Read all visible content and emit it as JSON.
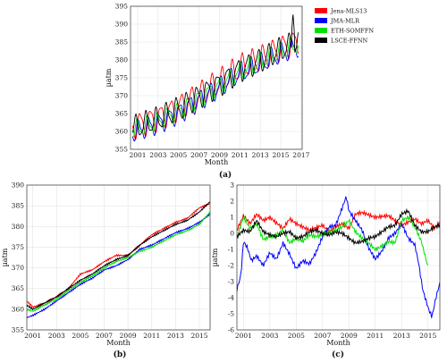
{
  "chart_data": [
    {
      "id": "a",
      "type": "line",
      "panel_label": "(a)",
      "xlabel": "Month",
      "ylabel": "µatm",
      "xlim": [
        2000.3,
        2017.1
      ],
      "ylim": [
        355,
        395
      ],
      "xticks": [
        "2001",
        "2003",
        "2005",
        "2007",
        "2009",
        "2011",
        "2013",
        "2015",
        "2017"
      ],
      "yticks": [
        355,
        360,
        365,
        370,
        375,
        380,
        385,
        390,
        395
      ],
      "grid": true,
      "legend": "outside-right",
      "series": [
        {
          "name": "Jena-MLS13",
          "color": "#ff0000"
        },
        {
          "name": "JMA-MLR",
          "color": "#0000ff"
        },
        {
          "name": "ETH-SOMFFN",
          "color": "#00e000"
        },
        {
          "name": "LSCE-FFNN",
          "color": "#000000"
        }
      ],
      "trend": {
        "x": [
          2000.5,
          2003,
          2005,
          2007,
          2009,
          2011,
          2013,
          2015,
          2016.7
        ],
        "y": [
          360.5,
          363,
          366,
          369.5,
          373,
          377,
          379.5,
          382.5,
          384.5
        ]
      },
      "seasonal_amplitude": [
        3.2,
        2.5,
        2.2,
        3.0
      ],
      "offsets": [
        1.5,
        -1.5,
        -0.5,
        0.6
      ],
      "peak_event": {
        "x": 2016.2,
        "y": 393
      }
    },
    {
      "id": "b",
      "type": "line",
      "panel_label": "(b)",
      "xlabel": "Month",
      "ylabel": "µatm",
      "xlim": [
        2000.5,
        2015.9
      ],
      "ylim": [
        355,
        390
      ],
      "xticks": [
        "2001",
        "2003",
        "2005",
        "2007",
        "2009",
        "2011",
        "2013",
        "2015"
      ],
      "yticks": [
        355,
        360,
        365,
        370,
        375,
        380,
        385,
        390
      ],
      "grid": true,
      "series": [
        {
          "name": "Jena-MLS13",
          "color": "#ff0000",
          "x": [
            2000.5,
            2001,
            2002,
            2003,
            2004,
            2005,
            2006,
            2007,
            2008,
            2009,
            2010,
            2011,
            2012,
            2013,
            2014,
            2015,
            2015.9
          ],
          "y": [
            362,
            360.5,
            361.5,
            363,
            365,
            368.5,
            369.5,
            371.5,
            373,
            373,
            375.5,
            378,
            379.5,
            381,
            382,
            384.5,
            385.5
          ]
        },
        {
          "name": "JMA-MLR",
          "color": "#0000ff",
          "x": [
            2000.5,
            2001,
            2002,
            2003,
            2004,
            2005,
            2006,
            2007,
            2008,
            2009,
            2010,
            2011,
            2012,
            2013,
            2014,
            2015,
            2015.9
          ],
          "y": [
            358,
            358.5,
            360,
            362,
            364,
            366,
            367.5,
            369.5,
            370.5,
            372,
            374.5,
            375.5,
            377,
            378.5,
            379.5,
            381,
            383
          ]
        },
        {
          "name": "ETH-SOMFFN",
          "color": "#00e000",
          "x": [
            2000.5,
            2001,
            2002,
            2003,
            2004,
            2005,
            2006,
            2007,
            2008,
            2009,
            2010,
            2011,
            2012,
            2013,
            2014,
            2015,
            2015.9
          ],
          "y": [
            360,
            359.5,
            361,
            362.5,
            364.5,
            366.5,
            368,
            370,
            371.5,
            372.5,
            374,
            375,
            376.5,
            378,
            379,
            380.5,
            383.5
          ]
        },
        {
          "name": "LSCE-FFNN",
          "color": "#000000",
          "x": [
            2000.5,
            2001,
            2002,
            2003,
            2004,
            2005,
            2006,
            2007,
            2008,
            2009,
            2010,
            2011,
            2012,
            2013,
            2014,
            2015,
            2015.9
          ],
          "y": [
            361,
            360,
            361.5,
            363,
            365,
            367,
            368.5,
            370.5,
            372,
            373,
            375.5,
            377.5,
            379,
            380.5,
            381.5,
            383.5,
            386
          ]
        }
      ]
    },
    {
      "id": "c",
      "type": "line",
      "panel_label": "(c)",
      "xlabel": "Month",
      "ylabel": "µatm",
      "xlim": [
        2000.5,
        2015.9
      ],
      "ylim": [
        -6,
        3
      ],
      "xticks": [
        "2001",
        "2003",
        "2005",
        "2007",
        "2009",
        "2011",
        "2013",
        "2015"
      ],
      "yticks": [
        -6,
        -5,
        -4,
        -3,
        -2,
        -1,
        0,
        1,
        2,
        3
      ],
      "grid": true,
      "series": [
        {
          "name": "Jena-MLS13",
          "color": "#ff0000",
          "x": [
            2000.5,
            2001,
            2001.5,
            2002,
            2002.5,
            2003,
            2004,
            2004.5,
            2005,
            2006,
            2007,
            2007.5,
            2008,
            2008.5,
            2009,
            2009.5,
            2010,
            2011,
            2012,
            2013,
            2014,
            2014.5,
            2015,
            2015.5,
            2015.9
          ],
          "y": [
            0.2,
            1.1,
            0.6,
            1.2,
            0.8,
            1.0,
            0.3,
            0.9,
            0.6,
            0.2,
            0.5,
            0.1,
            0.4,
            0.6,
            0.3,
            1.2,
            1.3,
            1.0,
            1.1,
            0.5,
            0.9,
            0.6,
            0.8,
            0.3,
            0.7
          ]
        },
        {
          "name": "JMA-MLR",
          "color": "#0000ff",
          "x": [
            2000.5,
            2000.8,
            2001,
            2001.3,
            2001.6,
            2002,
            2002.5,
            2003,
            2003.5,
            2004,
            2004.5,
            2005,
            2005.5,
            2006,
            2006.5,
            2007,
            2007.5,
            2008,
            2008.5,
            2008.8,
            2009,
            2009.5,
            2010,
            2010.5,
            2011,
            2011.5,
            2012,
            2012.5,
            2013,
            2013.5,
            2014,
            2014.3,
            2014.6,
            2015,
            2015.3,
            2015.6,
            2015.9
          ],
          "y": [
            -3.5,
            -2.6,
            -0.5,
            -0.9,
            -1.7,
            -1.4,
            -2.0,
            -1.2,
            -1.6,
            -0.6,
            -1.3,
            -2.2,
            -1.7,
            -1.9,
            -1.2,
            -0.2,
            0.4,
            0.5,
            1.6,
            2.3,
            1.4,
            0.8,
            0.2,
            -0.9,
            -1.6,
            -1.1,
            -0.3,
            0.0,
            0.6,
            -0.3,
            -0.7,
            -1.9,
            -3.5,
            -4.6,
            -5.2,
            -4.0,
            -3.1
          ]
        },
        {
          "name": "ETH-SOMFFN",
          "color": "#00e000",
          "x": [
            2000.5,
            2001,
            2001.5,
            2002,
            2002.5,
            2003,
            2003.5,
            2004,
            2004.5,
            2005,
            2005.5,
            2006,
            2006.5,
            2007,
            2007.5,
            2008,
            2008.5,
            2009,
            2009.5,
            2010,
            2010.5,
            2011,
            2011.5,
            2012,
            2012.5,
            2013,
            2013.5,
            2014,
            2014.5,
            2015
          ],
          "y": [
            -0.3,
            1.0,
            0.3,
            0.6,
            -0.4,
            -0.2,
            -0.1,
            0.2,
            -0.6,
            -0.3,
            -0.5,
            -0.1,
            -0.2,
            -0.1,
            0.1,
            0.2,
            0.4,
            0.8,
            0.1,
            -0.3,
            -0.6,
            -1.0,
            -0.8,
            -0.5,
            -0.6,
            0.8,
            1.0,
            0.4,
            -0.5,
            -2.1
          ]
        },
        {
          "name": "LSCE-FFNN",
          "color": "#000000",
          "x": [
            2000.5,
            2001,
            2001.5,
            2002,
            2002.5,
            2003,
            2003.5,
            2004,
            2004.5,
            2005,
            2005.5,
            2006,
            2006.5,
            2007,
            2007.5,
            2008,
            2008.5,
            2009,
            2009.5,
            2010,
            2010.5,
            2011,
            2011.5,
            2012,
            2012.5,
            2013,
            2013.5,
            2014,
            2014.5,
            2015,
            2015.5,
            2015.9
          ],
          "y": [
            -0.2,
            0.2,
            0.1,
            0.8,
            0.1,
            -0.1,
            -0.2,
            0.0,
            0.1,
            -0.3,
            -0.2,
            0.1,
            0.2,
            0.0,
            -0.1,
            0.1,
            0.0,
            -0.3,
            -0.6,
            -0.5,
            -0.3,
            -0.2,
            0.1,
            0.4,
            0.5,
            1.2,
            1.4,
            0.5,
            0.1,
            0.1,
            0.4,
            0.5
          ]
        }
      ]
    }
  ]
}
